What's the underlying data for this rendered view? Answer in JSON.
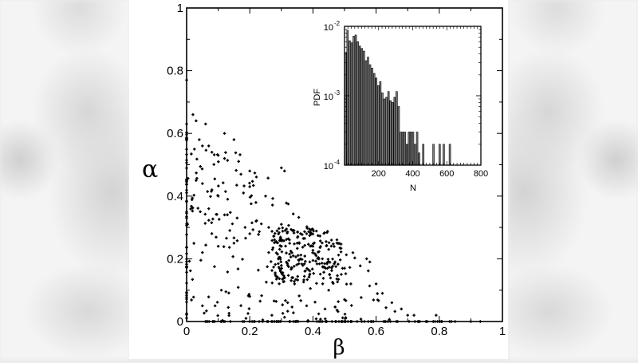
{
  "chart_data": [
    {
      "type": "scatter",
      "title": "",
      "xlabel": "β",
      "ylabel": "α",
      "xlim": [
        0,
        1
      ],
      "ylim": [
        0,
        1
      ],
      "xticks": [
        "0",
        "0.2",
        "0.4",
        "0.6",
        "0.8",
        "1"
      ],
      "yticks": [
        "0",
        "0.2",
        "0.4",
        "0.6",
        "0.8",
        "1"
      ],
      "grid": false,
      "legend": null,
      "description": "~700 points filling a triangle bounded by α + β ≲ 0.75; dense cluster near β≈0.35-0.45, α≈0.15-0.3; many points on α=0 axis out to β≈0.93 and on β=0 axis up to α≈0.77",
      "seed_points": [
        [
          0.0,
          0.77
        ],
        [
          0.0,
          0.63
        ],
        [
          0.02,
          0.66
        ],
        [
          0.03,
          0.64
        ],
        [
          0.06,
          0.63
        ],
        [
          0.12,
          0.6
        ],
        [
          0.15,
          0.58
        ],
        [
          0.04,
          0.58
        ],
        [
          0.05,
          0.56
        ],
        [
          0.07,
          0.56
        ],
        [
          0.08,
          0.54
        ],
        [
          0.1,
          0.53
        ],
        [
          0.12,
          0.52
        ],
        [
          0.2,
          0.48
        ],
        [
          0.3,
          0.49
        ],
        [
          0.31,
          0.48
        ],
        [
          0.03,
          0.45
        ],
        [
          0.05,
          0.44
        ],
        [
          0.08,
          0.42
        ],
        [
          0.1,
          0.4
        ],
        [
          0.13,
          0.39
        ],
        [
          0.18,
          0.41
        ],
        [
          0.2,
          0.43
        ],
        [
          0.25,
          0.4
        ],
        [
          0.07,
          0.36
        ],
        [
          0.12,
          0.34
        ],
        [
          0.16,
          0.33
        ],
        [
          0.22,
          0.32
        ],
        [
          0.26,
          0.3
        ],
        [
          0.3,
          0.31
        ],
        [
          0.34,
          0.29
        ],
        [
          0.38,
          0.28
        ],
        [
          0.05,
          0.22
        ],
        [
          0.1,
          0.24
        ],
        [
          0.15,
          0.25
        ],
        [
          0.2,
          0.28
        ],
        [
          0.26,
          0.22
        ],
        [
          0.3,
          0.24
        ],
        [
          0.35,
          0.25
        ],
        [
          0.4,
          0.24
        ],
        [
          0.45,
          0.23
        ],
        [
          0.32,
          0.18
        ],
        [
          0.36,
          0.2
        ],
        [
          0.39,
          0.19
        ],
        [
          0.41,
          0.21
        ],
        [
          0.43,
          0.2
        ],
        [
          0.44,
          0.17
        ],
        [
          0.47,
          0.19
        ],
        [
          0.5,
          0.17
        ],
        [
          0.05,
          0.05
        ],
        [
          0.09,
          0.05
        ],
        [
          0.11,
          0.1
        ],
        [
          0.2,
          0.08
        ],
        [
          0.27,
          0.02
        ],
        [
          0.32,
          0.06
        ],
        [
          0.38,
          0.05
        ],
        [
          0.45,
          0.1
        ],
        [
          0.5,
          0.07
        ],
        [
          0.52,
          0.12
        ],
        [
          0.57,
          0.2
        ],
        [
          0.58,
          0.19
        ],
        [
          0.6,
          0.12
        ],
        [
          0.62,
          0.09
        ],
        [
          0.65,
          0.06
        ],
        [
          0.68,
          0.04
        ],
        [
          0.7,
          0.02
        ],
        [
          0.72,
          0.02
        ],
        [
          0.79,
          0.02
        ],
        [
          0.85,
          0.0
        ],
        [
          0.9,
          0.0
        ],
        [
          0.93,
          0.0
        ]
      ]
    },
    {
      "type": "bar",
      "title": "inset histogram",
      "xlabel": "N",
      "ylabel": "PDF",
      "xlim": [
        0,
        800
      ],
      "ylim": [
        0.0001,
        0.01
      ],
      "yscale": "log",
      "xticks": [
        "200",
        "400",
        "600",
        "800"
      ],
      "yticks": [
        "10^-4",
        "10^-3",
        "10^-2"
      ],
      "bin_width": 12,
      "categories": [
        6,
        18,
        30,
        42,
        54,
        66,
        78,
        90,
        102,
        114,
        126,
        138,
        150,
        162,
        174,
        186,
        198,
        210,
        222,
        234,
        246,
        258,
        270,
        282,
        294,
        306,
        318,
        330,
        342,
        354,
        366,
        378,
        390,
        402,
        414,
        426,
        438,
        450,
        462,
        474,
        486,
        498,
        510,
        522,
        534,
        546,
        558,
        570,
        582,
        594,
        606,
        618,
        630,
        642,
        654,
        666,
        678,
        690,
        702,
        714,
        726,
        738
      ],
      "values": [
        0.0042,
        0.0088,
        0.0062,
        0.0058,
        0.0072,
        0.0075,
        0.006,
        0.0052,
        0.0048,
        0.0044,
        0.0032,
        0.0036,
        0.0028,
        0.0025,
        0.0021,
        0.0018,
        0.0014,
        0.0016,
        0.0011,
        0.0009,
        0.00095,
        0.00115,
        0.00085,
        0.0008,
        0.00095,
        0.00115,
        0.0007,
        0.0003,
        0.0003,
        0.0003,
        0.0002,
        0.0003,
        0.0003,
        0.0003,
        0.0002,
        0.0003,
        0.00015,
        0.0001,
        0.0002,
        0.0001,
        0.0001,
        0.0001,
        0.0001,
        0.0002,
        0.0001,
        0.0001,
        0.0002,
        0.0001,
        0.0002,
        0.0001,
        0.0001,
        0.0002,
        0.0001,
        0.0001,
        0.0001,
        0.0001,
        0.0001,
        0.0001,
        0.0001,
        0.0001,
        0.0001,
        0.0001
      ]
    }
  ],
  "labels": {
    "main_xlabel": "β",
    "main_ylabel": "α",
    "main_xticks": [
      "0",
      "0.2",
      "0.4",
      "0.6",
      "0.8",
      "1"
    ],
    "main_yticks": [
      "0",
      "0.2",
      "0.4",
      "0.6",
      "0.8",
      "1"
    ],
    "inset_xlabel": "N",
    "inset_ylabel": "PDF",
    "inset_xticks": [
      "200",
      "400",
      "600",
      "800"
    ],
    "inset_yticks": [
      {
        "base": "10",
        "exp": "-4"
      },
      {
        "base": "10",
        "exp": "-3"
      },
      {
        "base": "10",
        "exp": "-2"
      }
    ]
  },
  "colors": {
    "points": "#000000",
    "bars_fill": "#7f7f7f",
    "bars_stroke": "#000000",
    "axes": "#000000",
    "panel_bg": "#ffffff"
  }
}
